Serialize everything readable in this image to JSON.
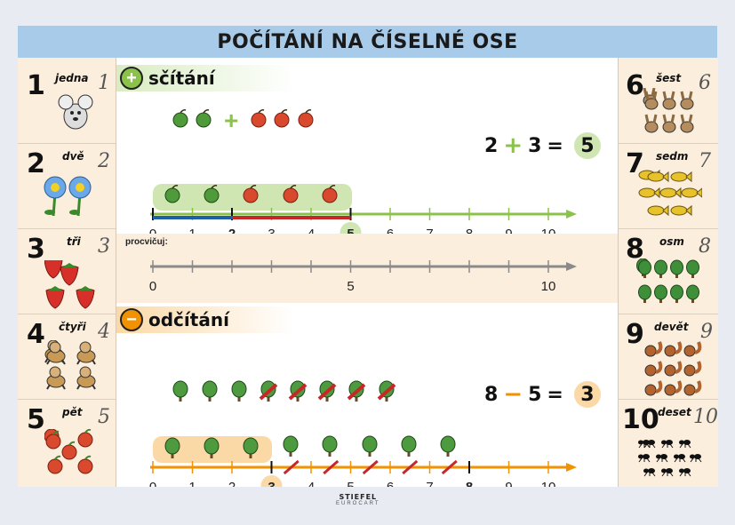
{
  "title": "POČÍTÁNÍ NA ČÍSELNÉ OSE",
  "colors": {
    "title_bg": "#a8cbe9",
    "panel_bg": "#fbeedd",
    "green": "#8bc34a",
    "orange": "#f39200",
    "blue": "#1f5fa8",
    "red": "#c62828"
  },
  "left_numbers": [
    {
      "digit": "1",
      "word": "jedna",
      "script": "1",
      "picture": "mouse"
    },
    {
      "digit": "2",
      "word": "dvě",
      "script": "2",
      "picture": "flower"
    },
    {
      "digit": "3",
      "word": "tři",
      "script": "3",
      "picture": "strawberry"
    },
    {
      "digit": "4",
      "word": "čtyři",
      "script": "4",
      "picture": "dog"
    },
    {
      "digit": "5",
      "word": "pět",
      "script": "5",
      "picture": "apple"
    }
  ],
  "right_numbers": [
    {
      "digit": "6",
      "word": "šest",
      "script": "6",
      "picture": "rabbit"
    },
    {
      "digit": "7",
      "word": "sedm",
      "script": "7",
      "picture": "fish"
    },
    {
      "digit": "8",
      "word": "osm",
      "script": "8",
      "picture": "tree"
    },
    {
      "digit": "9",
      "word": "devět",
      "script": "9",
      "picture": "squirrel"
    },
    {
      "digit": "10",
      "word": "deset",
      "script": "10",
      "picture": "ant"
    }
  ],
  "addition": {
    "label": "sčítání",
    "sign": "+",
    "equation": {
      "a": "2",
      "op": "+",
      "b": "3",
      "eq": "=",
      "result": "5"
    },
    "axis_labels": [
      "0",
      "1",
      "2",
      "3",
      "4",
      "5",
      "6",
      "7",
      "8",
      "9",
      "10"
    ]
  },
  "practice": {
    "label": "procvičuj:",
    "axis_labels": [
      "0",
      "5",
      "10"
    ]
  },
  "subtraction": {
    "label": "odčítání",
    "sign": "−",
    "equation": {
      "a": "8",
      "op": "−",
      "b": "5",
      "eq": "=",
      "result": "3"
    },
    "axis_labels": [
      "0",
      "1",
      "2",
      "3",
      "4",
      "5",
      "6",
      "7",
      "8",
      "9",
      "10"
    ]
  },
  "footer": {
    "brand": "STIEFEL",
    "brand_sub": "EUROCART"
  }
}
